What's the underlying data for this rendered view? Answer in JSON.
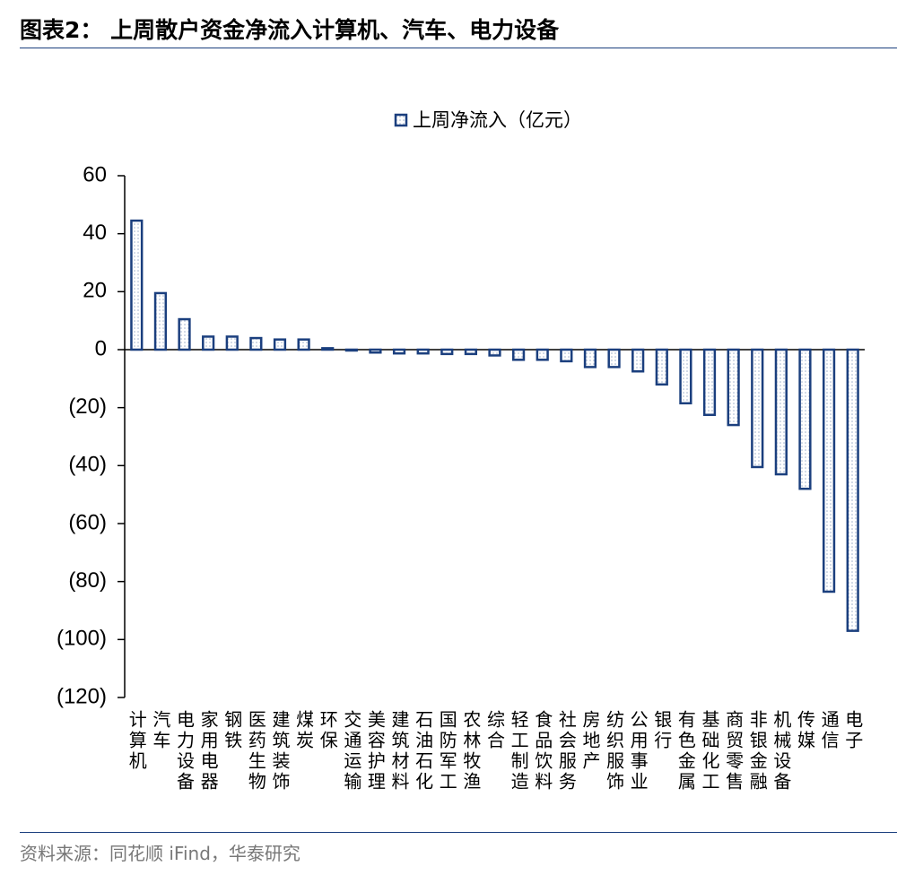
{
  "header": {
    "title": "图表2： 上周散户资金净流入计算机、汽车、电力设备"
  },
  "chart_data": {
    "type": "bar",
    "series": [
      {
        "name": "上周净流入（亿元）",
        "color": "#1b3f7e",
        "values": [
          44.5,
          19.5,
          10.5,
          4.5,
          4.5,
          4,
          3.5,
          3.5,
          0.5,
          -0.3,
          -1,
          -1.3,
          -1.3,
          -1.5,
          -1.5,
          -2,
          -3.5,
          -3.5,
          -4,
          -6,
          -6,
          -7.5,
          -12,
          -18.5,
          -22.5,
          -26,
          -40.5,
          -43,
          -48,
          -83.5,
          -97
        ]
      }
    ],
    "categories": [
      "计算机",
      "汽车",
      "电力设备",
      "家用电器",
      "钢铁",
      "医药生物",
      "建筑装饰",
      "煤炭",
      "环保",
      "交通运输",
      "美容护理",
      "建筑材料",
      "石油石化",
      "国防军工",
      "农林牧渔",
      "综合",
      "轻工制造",
      "食品饮料",
      "社会服务",
      "房地产",
      "纺织服饰",
      "公用事业",
      "银行",
      "有色金属",
      "基础化工",
      "商贸零售",
      "非银金融",
      "机械设备",
      "传媒",
      "通信",
      "电子"
    ],
    "ylim": [
      -120,
      60
    ],
    "yticks": [
      {
        "value": -120,
        "label": "(120)"
      },
      {
        "value": -100,
        "label": "(100)"
      },
      {
        "value": -80,
        "label": "(80)"
      },
      {
        "value": -60,
        "label": "(60)"
      },
      {
        "value": -40,
        "label": "(40)"
      },
      {
        "value": -20,
        "label": "(20)"
      },
      0,
      20,
      40,
      60
    ],
    "legend": "top"
  },
  "footer": {
    "source": "资料来源：同花顺 iFind，华泰研究"
  }
}
